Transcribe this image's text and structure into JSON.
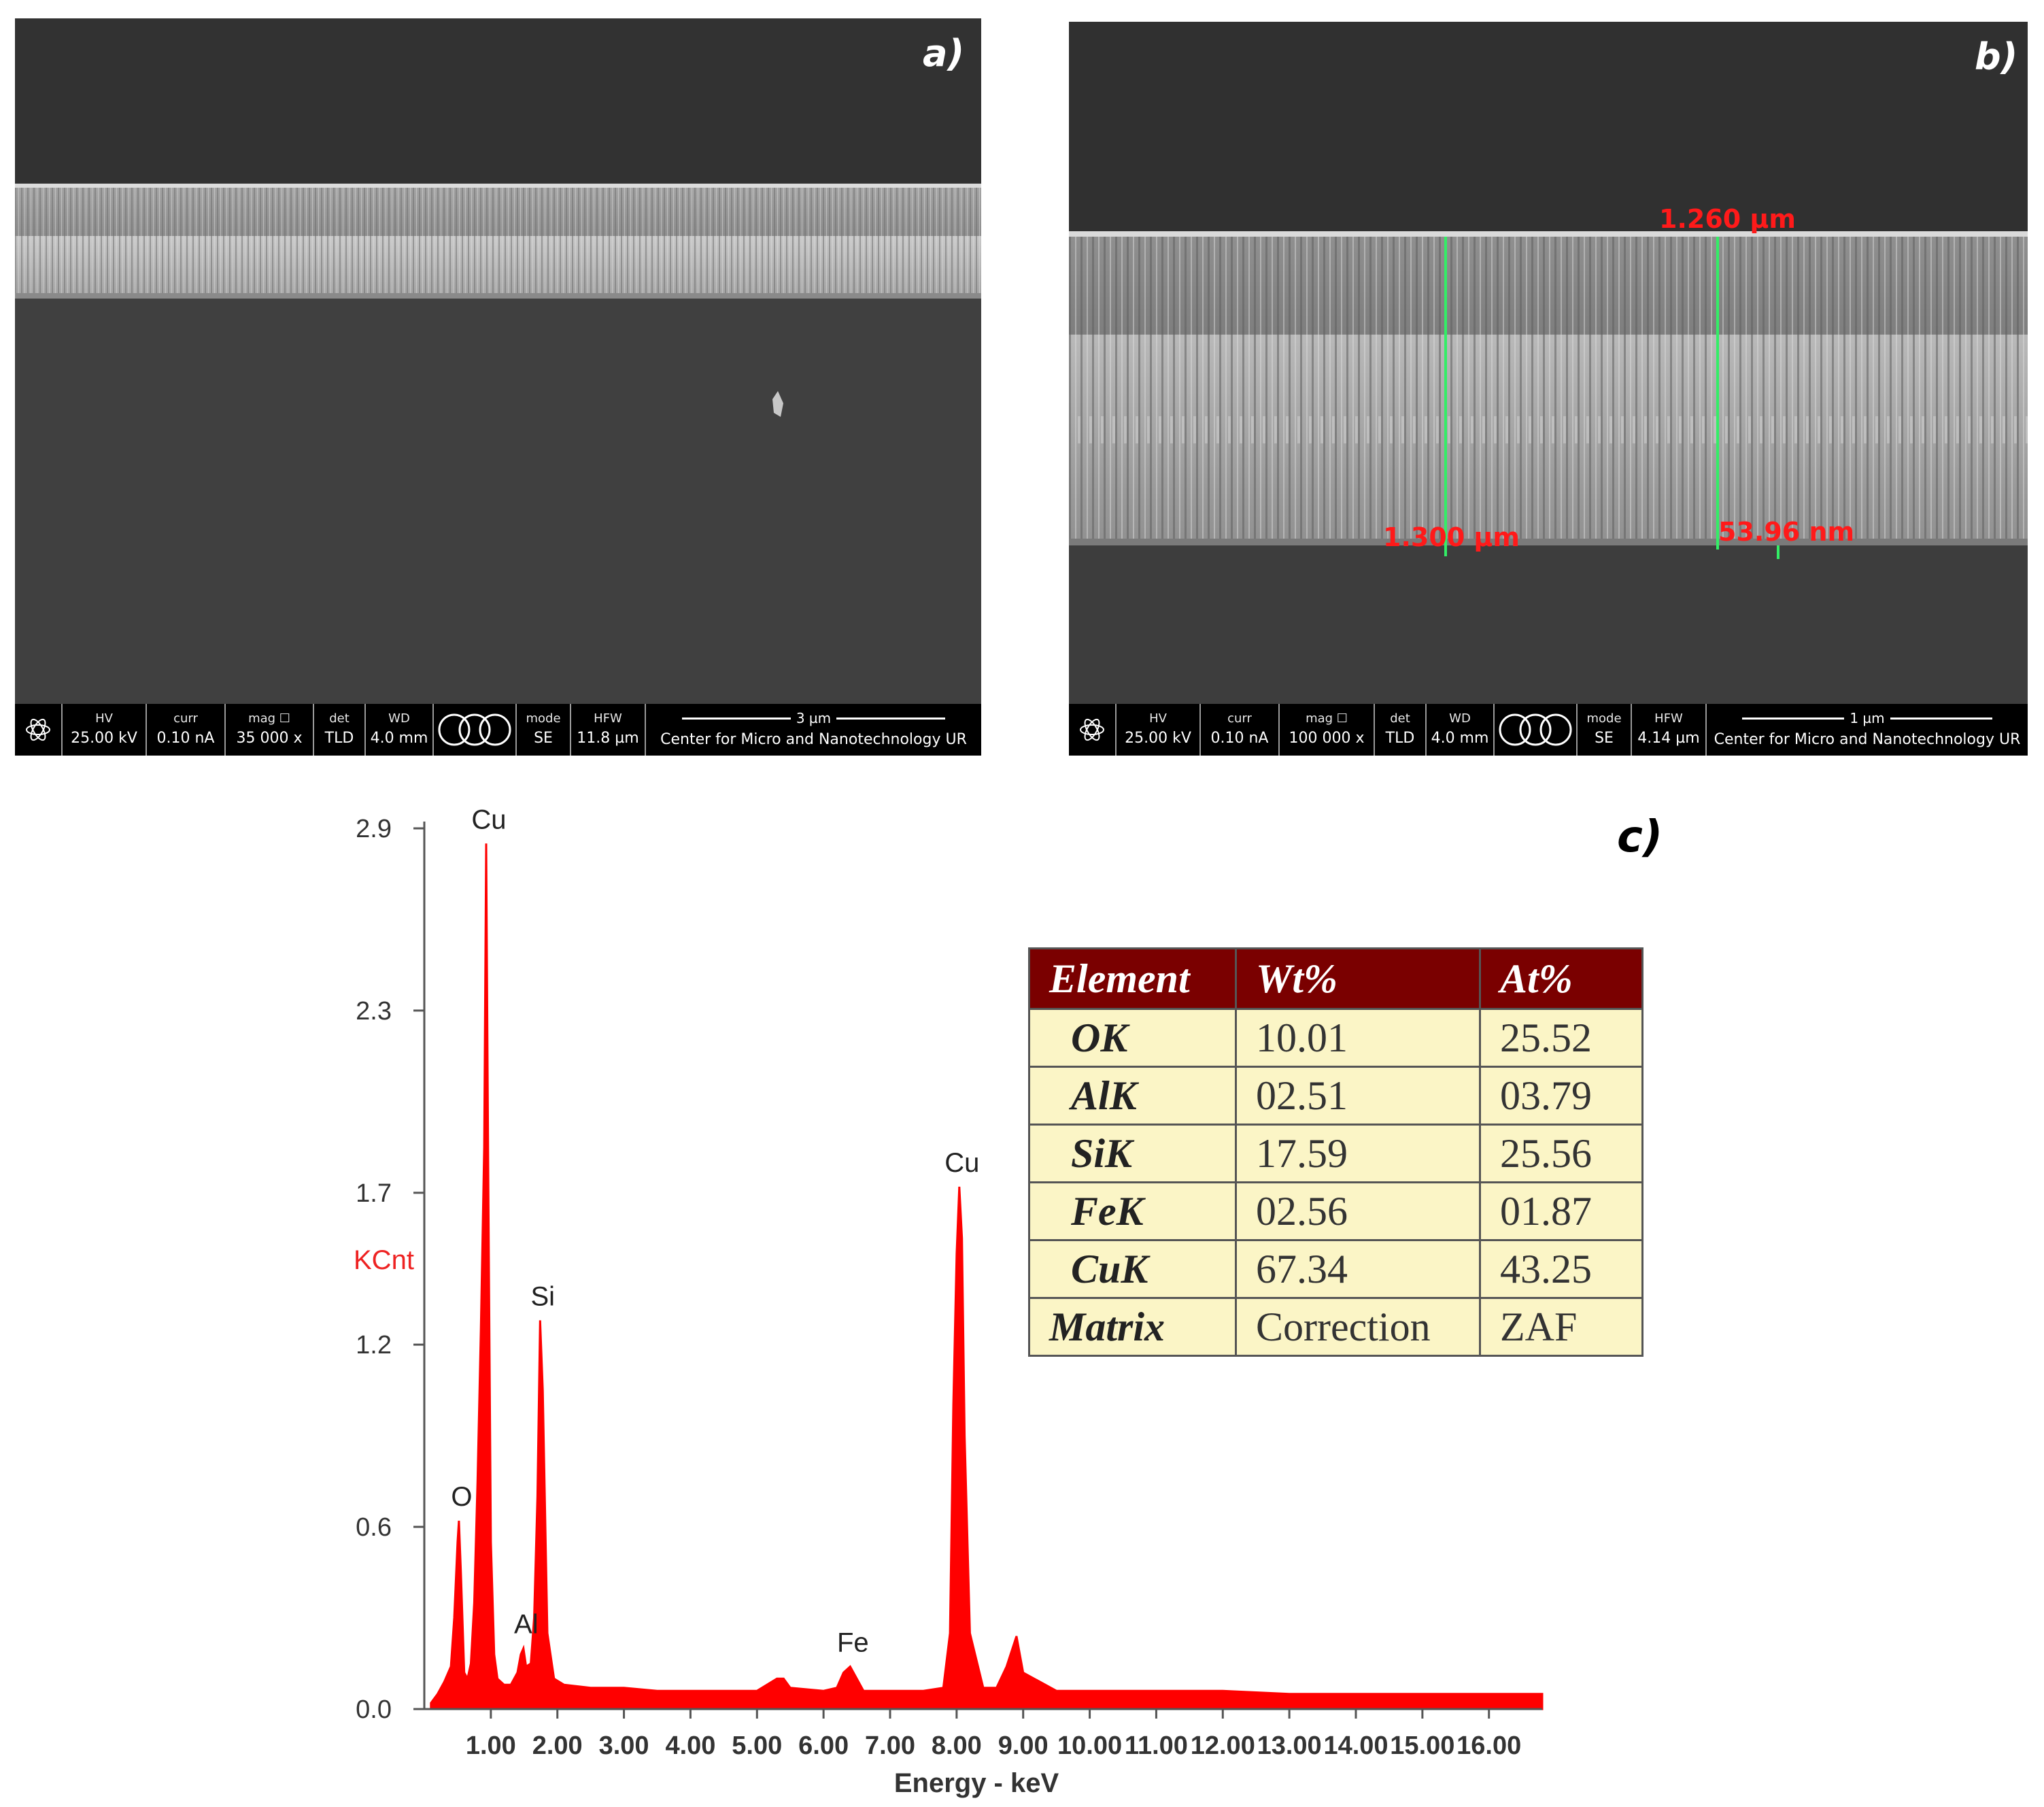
{
  "panel_a": {
    "letter": "a)",
    "databar": {
      "hv_label": "HV",
      "hv_value": "25.00 kV",
      "curr_label": "curr",
      "curr_value": "0.10 nA",
      "mag_label": "mag",
      "mag_value": "35 000 x",
      "det_label": "det",
      "det_value": "TLD",
      "wd_label": "WD",
      "wd_value": "4.0 mm",
      "mode_label": "mode",
      "mode_value": "SE",
      "hfw_label": "HFW",
      "hfw_value": "11.8 µm",
      "scale_label": "3 µm",
      "center_name": "Center for Micro and Nanotechnology UR"
    }
  },
  "panel_b": {
    "letter": "b)",
    "measurements": [
      "1.260 µm",
      "1.300 µm",
      "53.96 nm"
    ],
    "databar": {
      "hv_label": "HV",
      "hv_value": "25.00 kV",
      "curr_label": "curr",
      "curr_value": "0.10 nA",
      "mag_label": "mag",
      "mag_value": "100 000 x",
      "det_label": "det",
      "det_value": "TLD",
      "wd_label": "WD",
      "wd_value": "4.0 mm",
      "mode_label": "mode",
      "mode_value": "SE",
      "hfw_label": "HFW",
      "hfw_value": "4.14 µm",
      "scale_label": "1 µm",
      "center_name": "Center for Micro and Nanotechnology UR"
    }
  },
  "panel_c": {
    "letter": "c)",
    "table": {
      "headers": [
        "Element",
        "Wt%",
        "At%"
      ],
      "rows": [
        [
          "OK",
          "10.01",
          "25.52"
        ],
        [
          "AlK",
          "02.51",
          "03.79"
        ],
        [
          "SiK",
          "17.59",
          "25.56"
        ],
        [
          "FeK",
          "02.56",
          "01.87"
        ],
        [
          "CuK",
          "67.34",
          "43.25"
        ],
        [
          "Matrix",
          "Correction",
          "ZAF"
        ]
      ]
    }
  },
  "chart_data": {
    "type": "line",
    "xlabel": "Energy - keV",
    "ylabel": "KCnt",
    "xlim": [
      0,
      16.8
    ],
    "ylim": [
      0,
      2.9
    ],
    "x_ticks": [
      "1.00",
      "2.00",
      "3.00",
      "4.00",
      "5.00",
      "6.00",
      "7.00",
      "8.00",
      "9.00",
      "10.00",
      "11.00",
      "12.00",
      "13.00",
      "14.00",
      "15.00",
      "16.00"
    ],
    "y_ticks": [
      "0.0",
      "0.6",
      "1.2",
      "1.7",
      "2.3",
      "2.9"
    ],
    "color": "#ff0000",
    "peaks": [
      {
        "label": "O",
        "x": 0.52,
        "y": 0.62
      },
      {
        "label": "Cu",
        "x": 0.93,
        "y": 2.85
      },
      {
        "label": "Al",
        "x": 1.49,
        "y": 0.2
      },
      {
        "label": "Si",
        "x": 1.74,
        "y": 1.28
      },
      {
        "label": "Fe",
        "x": 6.4,
        "y": 0.14
      },
      {
        "label": "Cu",
        "x": 8.04,
        "y": 1.72
      }
    ],
    "series": [
      {
        "x": [
          0.1,
          0.2,
          0.3,
          0.4,
          0.45,
          0.5,
          0.52,
          0.55,
          0.6,
          0.65,
          0.7,
          0.75,
          0.8,
          0.85,
          0.9,
          0.93,
          0.96,
          1.0,
          1.05,
          1.1,
          1.2,
          1.3,
          1.4,
          1.45,
          1.49,
          1.53,
          1.6,
          1.65,
          1.7,
          1.74,
          1.78,
          1.85,
          1.95,
          2.1,
          2.5,
          3.0,
          3.5,
          4.0,
          4.5,
          5.0,
          5.3,
          5.4,
          5.5,
          6.0,
          6.2,
          6.3,
          6.4,
          6.5,
          6.6,
          7.0,
          7.5,
          7.8,
          7.9,
          7.95,
          8.0,
          8.04,
          8.08,
          8.12,
          8.2,
          8.4,
          8.6,
          8.75,
          8.9,
          9.0,
          9.5,
          10.0,
          11.0,
          12.0,
          13.0,
          14.0,
          15.0,
          16.0,
          16.8
        ],
        "y": [
          0.02,
          0.05,
          0.09,
          0.14,
          0.3,
          0.55,
          0.62,
          0.45,
          0.12,
          0.1,
          0.15,
          0.35,
          0.75,
          1.25,
          1.85,
          2.85,
          1.8,
          0.55,
          0.18,
          0.1,
          0.08,
          0.08,
          0.12,
          0.18,
          0.2,
          0.14,
          0.15,
          0.3,
          0.7,
          1.28,
          1.05,
          0.25,
          0.1,
          0.08,
          0.07,
          0.07,
          0.06,
          0.06,
          0.06,
          0.06,
          0.1,
          0.1,
          0.07,
          0.06,
          0.07,
          0.12,
          0.14,
          0.1,
          0.06,
          0.06,
          0.06,
          0.07,
          0.25,
          1.0,
          1.5,
          1.72,
          1.55,
          0.9,
          0.25,
          0.07,
          0.07,
          0.14,
          0.24,
          0.12,
          0.06,
          0.06,
          0.06,
          0.06,
          0.05,
          0.05,
          0.05,
          0.05,
          0.05
        ]
      }
    ]
  }
}
